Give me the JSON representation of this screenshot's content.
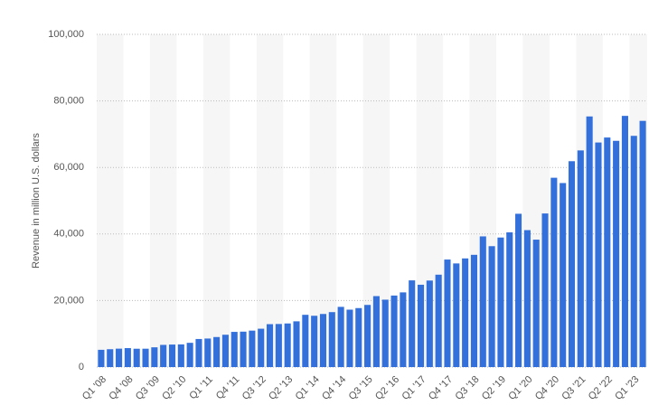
{
  "chart_data": {
    "type": "bar",
    "y_label": "Revenue in million U.S. dollars",
    "categories": [
      "Q1 '08",
      null,
      null,
      "Q4 '08",
      null,
      null,
      "Q3 '09",
      null,
      null,
      "Q2 '10",
      null,
      null,
      "Q1 '11",
      null,
      null,
      "Q4 '11",
      null,
      null,
      "Q3 '12",
      null,
      null,
      "Q2 '13",
      null,
      null,
      "Q1 '14",
      null,
      null,
      "Q4 '14",
      null,
      null,
      "Q3 '15",
      null,
      null,
      "Q2 '16",
      null,
      null,
      "Q1 '17",
      null,
      null,
      "Q4 '17",
      null,
      null,
      "Q3 '18",
      null,
      null,
      "Q2 '19",
      null,
      null,
      "Q1 '20",
      null,
      null,
      "Q4 '20",
      null,
      null,
      "Q3 '21",
      null,
      null,
      "Q2 '22",
      null,
      null,
      "Q1 '23",
      null
    ],
    "values": [
      5190,
      5370,
      5540,
      5700,
      5510,
      5520,
      5940,
      6670,
      6770,
      6820,
      7290,
      8440,
      8580,
      9030,
      9720,
      10580,
      10650,
      10960,
      11530,
      12900,
      12950,
      13110,
      13750,
      15710,
      15420,
      15960,
      16520,
      18100,
      17260,
      17730,
      18680,
      21330,
      20260,
      21500,
      22450,
      26060,
      24750,
      26010,
      27770,
      32320,
      31150,
      32660,
      33740,
      39280,
      36340,
      38940,
      40500,
      46080,
      41160,
      38300,
      46170,
      56900,
      55310,
      61880,
      65120,
      75330,
      67500,
      69000,
      68000,
      75500,
      69500,
      74000
    ],
    "color": "#3370db",
    "ylim": [
      0,
      100000
    ],
    "yticks": [
      0,
      {
        "value": 20000,
        "label": "20,000"
      },
      {
        "value": 40000,
        "label": "40,000"
      },
      {
        "value": 60000,
        "label": "60,000"
      },
      {
        "value": 80000,
        "label": "80,000"
      },
      {
        "value": 100000,
        "label": "100,000"
      }
    ],
    "grid": true
  }
}
